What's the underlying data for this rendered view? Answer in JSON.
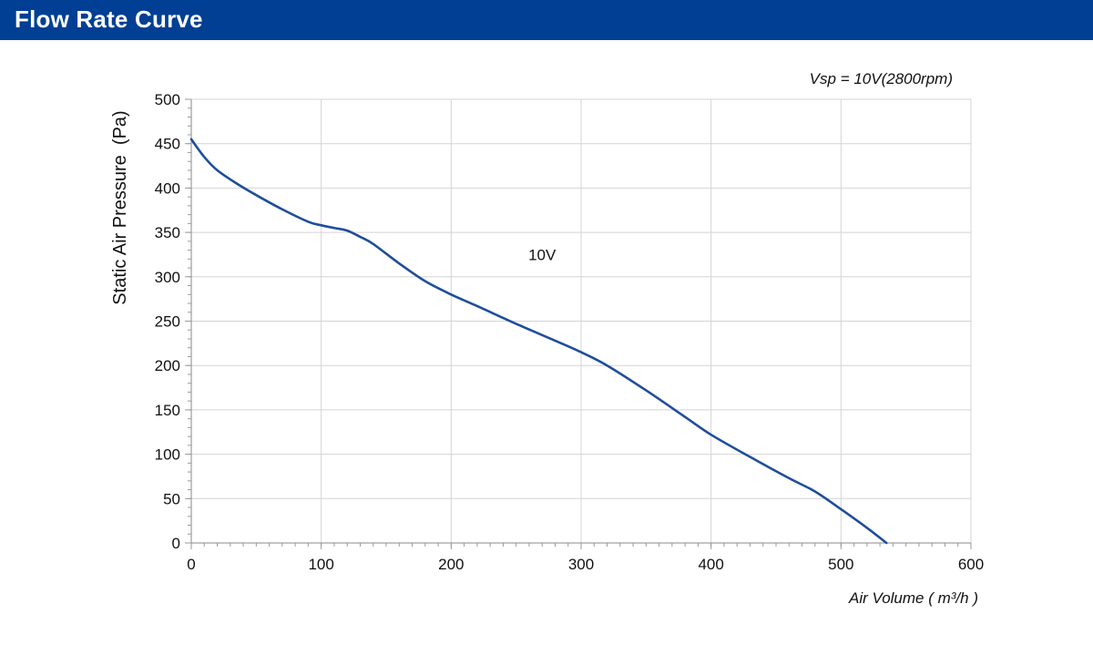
{
  "header": {
    "title": "Flow Rate Curve"
  },
  "colors": {
    "header_bg": "#003f94",
    "curve": "#1f4e9a",
    "grid": "#d4d4d4"
  },
  "chart_data": {
    "type": "line",
    "subtitle": "Vsp = 10V(2800rpm)",
    "xlabel": "Air Volume ( m³/h )",
    "ylabel": "Static Air Pressure  (Pa)",
    "xlim": [
      0,
      600
    ],
    "ylim": [
      0,
      500
    ],
    "xticks": [
      0,
      100,
      200,
      300,
      400,
      500,
      600
    ],
    "yticks": [
      0,
      50,
      100,
      150,
      200,
      250,
      300,
      350,
      400,
      450,
      500
    ],
    "grid": true,
    "series": [
      {
        "name": "10V",
        "x": [
          0,
          10,
          20,
          35,
          50,
          70,
          90,
          100,
          110,
          120,
          130,
          140,
          160,
          180,
          200,
          220,
          250,
          280,
          300,
          320,
          350,
          380,
          400,
          430,
          460,
          480,
          500,
          520,
          535
        ],
        "y": [
          455,
          435,
          420,
          405,
          392,
          376,
          362,
          358,
          355,
          352,
          345,
          337,
          315,
          295,
          280,
          267,
          247,
          228,
          215,
          200,
          172,
          142,
          122,
          97,
          73,
          58,
          38,
          17,
          0
        ]
      }
    ],
    "annotations": [
      {
        "text": "10V",
        "x": 270,
        "y": 325
      }
    ]
  }
}
